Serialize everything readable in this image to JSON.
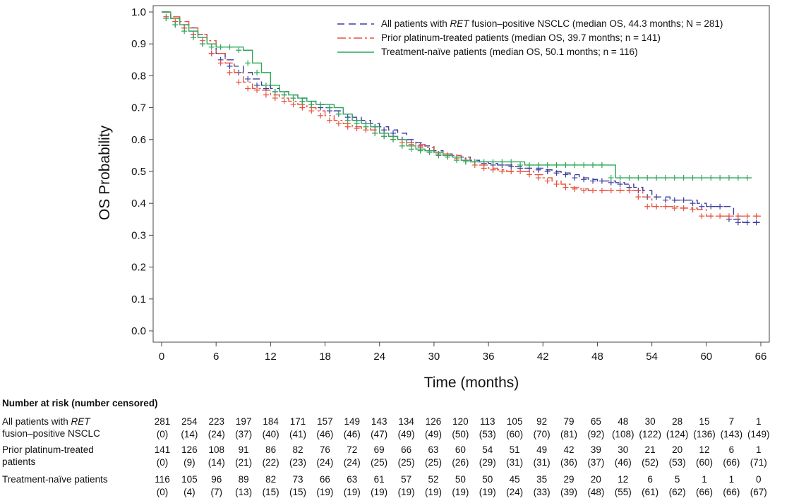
{
  "chart_data": {
    "type": "line",
    "subtype": "kaplan-meier",
    "xlabel": "Time (months)",
    "ylabel": "OS Probability",
    "xlim": [
      -1,
      68
    ],
    "ylim": [
      0,
      1.0
    ],
    "xticks": [
      "0",
      "6",
      "12",
      "18",
      "24",
      "30",
      "36",
      "42",
      "48",
      "54",
      "60",
      "66"
    ],
    "yticks": [
      "0.0",
      "0.1",
      "0.2",
      "0.3",
      "0.4",
      "0.5",
      "0.6",
      "0.7",
      "0.8",
      "0.9",
      "1.0"
    ],
    "legend_position": "top-right",
    "series": [
      {
        "name_pre": "All patients with ",
        "name_italic": "RET",
        "name_post": " fusion–positive NSCLC (median OS, 44.3 months; N = 281)",
        "color": "#3b3b9e",
        "dash": "10,6",
        "x": [
          0,
          1,
          2,
          3,
          4,
          5,
          6,
          7,
          8,
          9,
          10,
          11,
          12,
          13,
          14,
          15,
          16,
          17,
          18,
          19,
          20,
          21,
          22,
          23,
          24,
          25,
          26,
          27,
          28,
          29,
          30,
          31,
          32,
          33,
          34,
          35,
          36,
          37,
          38,
          39,
          40,
          41,
          42,
          43,
          44,
          45,
          46,
          47,
          48,
          49,
          50,
          51,
          52,
          53,
          54,
          55,
          56,
          57,
          58,
          59,
          60,
          61,
          62,
          63,
          64,
          65,
          66
        ],
        "y": [
          1.0,
          0.98,
          0.96,
          0.95,
          0.93,
          0.9,
          0.87,
          0.85,
          0.83,
          0.81,
          0.79,
          0.77,
          0.76,
          0.75,
          0.74,
          0.73,
          0.72,
          0.71,
          0.7,
          0.69,
          0.68,
          0.67,
          0.66,
          0.65,
          0.64,
          0.63,
          0.62,
          0.6,
          0.59,
          0.58,
          0.565,
          0.555,
          0.55,
          0.545,
          0.535,
          0.53,
          0.525,
          0.52,
          0.52,
          0.515,
          0.51,
          0.51,
          0.505,
          0.5,
          0.495,
          0.49,
          0.48,
          0.475,
          0.47,
          0.47,
          0.465,
          0.46,
          0.45,
          0.44,
          0.42,
          0.42,
          0.41,
          0.41,
          0.41,
          0.4,
          0.39,
          0.39,
          0.39,
          0.35,
          0.34,
          0.34,
          0.34
        ]
      },
      {
        "name_pre": "Prior platinum-treated patients (median OS, 39.7 months; n = 141)",
        "name_italic": "",
        "name_post": "",
        "color": "#e8503a",
        "dash": "12,4,3,4",
        "x": [
          0,
          1,
          2,
          3,
          4,
          5,
          6,
          7,
          8,
          9,
          10,
          11,
          12,
          13,
          14,
          15,
          16,
          17,
          18,
          19,
          20,
          21,
          22,
          23,
          24,
          25,
          26,
          27,
          28,
          29,
          30,
          31,
          32,
          33,
          34,
          35,
          36,
          37,
          38,
          39,
          40,
          41,
          42,
          43,
          44,
          45,
          46,
          47,
          48,
          49,
          50,
          51,
          52,
          53,
          54,
          55,
          56,
          57,
          58,
          59,
          60,
          61,
          62,
          63,
          64,
          65,
          66
        ],
        "y": [
          1.0,
          0.985,
          0.97,
          0.95,
          0.93,
          0.91,
          0.87,
          0.84,
          0.81,
          0.78,
          0.76,
          0.755,
          0.74,
          0.73,
          0.72,
          0.71,
          0.7,
          0.69,
          0.675,
          0.66,
          0.65,
          0.64,
          0.635,
          0.63,
          0.62,
          0.61,
          0.6,
          0.59,
          0.585,
          0.575,
          0.56,
          0.555,
          0.55,
          0.54,
          0.53,
          0.52,
          0.51,
          0.505,
          0.5,
          0.5,
          0.5,
          0.49,
          0.48,
          0.47,
          0.46,
          0.45,
          0.445,
          0.44,
          0.44,
          0.44,
          0.44,
          0.44,
          0.44,
          0.42,
          0.39,
          0.39,
          0.39,
          0.385,
          0.385,
          0.38,
          0.36,
          0.36,
          0.36,
          0.36,
          0.36,
          0.36,
          0.36
        ]
      },
      {
        "name_pre": "Treatment-naïve patients (median OS, 50.1 months; n = 116)",
        "name_italic": "",
        "name_post": "",
        "color": "#2ea65a",
        "dash": "",
        "x": [
          0,
          1,
          2,
          3,
          4,
          5,
          6,
          7,
          8,
          9,
          10,
          11,
          12,
          13,
          14,
          15,
          16,
          17,
          18,
          19,
          20,
          21,
          22,
          23,
          24,
          25,
          26,
          27,
          28,
          29,
          30,
          31,
          32,
          33,
          34,
          35,
          36,
          37,
          38,
          39,
          40,
          41,
          42,
          43,
          44,
          45,
          46,
          47,
          48,
          49,
          50,
          51,
          52,
          53,
          54,
          55,
          56,
          57,
          58,
          59,
          60,
          61,
          62,
          63,
          64,
          65
        ],
        "y": [
          1.0,
          0.98,
          0.96,
          0.94,
          0.92,
          0.9,
          0.89,
          0.89,
          0.89,
          0.88,
          0.84,
          0.81,
          0.77,
          0.75,
          0.74,
          0.73,
          0.72,
          0.71,
          0.71,
          0.7,
          0.68,
          0.66,
          0.65,
          0.64,
          0.62,
          0.61,
          0.6,
          0.58,
          0.57,
          0.565,
          0.56,
          0.55,
          0.545,
          0.535,
          0.53,
          0.53,
          0.53,
          0.53,
          0.53,
          0.53,
          0.52,
          0.52,
          0.52,
          0.52,
          0.52,
          0.52,
          0.52,
          0.52,
          0.52,
          0.52,
          0.48,
          0.48,
          0.48,
          0.48,
          0.48,
          0.48,
          0.48,
          0.48,
          0.48,
          0.48,
          0.48,
          0.48,
          0.48,
          0.48,
          0.48,
          0.48
        ]
      }
    ]
  },
  "risk_table": {
    "title": "Number at risk (number censored)",
    "times": [
      0,
      3,
      6,
      9,
      12,
      15,
      18,
      21,
      24,
      27,
      30,
      33,
      36,
      39,
      42,
      45,
      48,
      51,
      54,
      57,
      60,
      63,
      66
    ],
    "rows": [
      {
        "label_pre": "All patients with ",
        "label_italic": "RET",
        "label_line2": "fusion–positive NSCLC",
        "at_risk": [
          "281",
          "254",
          "223",
          "197",
          "184",
          "171",
          "157",
          "149",
          "143",
          "134",
          "126",
          "120",
          "113",
          "105",
          "92",
          "79",
          "65",
          "48",
          "30",
          "28",
          "15",
          "7",
          "1"
        ],
        "censored": [
          "(0)",
          "(14)",
          "(24)",
          "(37)",
          "(40)",
          "(41)",
          "(46)",
          "(46)",
          "(47)",
          "(49)",
          "(49)",
          "(50)",
          "(53)",
          "(60)",
          "(70)",
          "(81)",
          "(92)",
          "(108)",
          "(122)",
          "(124)",
          "(136)",
          "(143)",
          "(149)"
        ]
      },
      {
        "label_pre": "Prior platinum-treated",
        "label_italic": "",
        "label_line2": "patients",
        "at_risk": [
          "141",
          "126",
          "108",
          "91",
          "86",
          "82",
          "76",
          "72",
          "69",
          "66",
          "63",
          "60",
          "54",
          "51",
          "49",
          "42",
          "39",
          "30",
          "21",
          "20",
          "12",
          "6",
          "1"
        ],
        "censored": [
          "(0)",
          "(9)",
          "(14)",
          "(21)",
          "(22)",
          "(23)",
          "(24)",
          "(24)",
          "(25)",
          "(25)",
          "(25)",
          "(26)",
          "(29)",
          "(31)",
          "(31)",
          "(36)",
          "(37)",
          "(46)",
          "(52)",
          "(53)",
          "(60)",
          "(66)",
          "(71)"
        ]
      },
      {
        "label_pre": "Treatment-naïve patients",
        "label_italic": "",
        "label_line2": "",
        "at_risk": [
          "116",
          "105",
          "96",
          "89",
          "82",
          "73",
          "66",
          "63",
          "61",
          "57",
          "52",
          "50",
          "50",
          "45",
          "35",
          "29",
          "20",
          "12",
          "6",
          "5",
          "1",
          "1",
          "0"
        ],
        "censored": [
          "(0)",
          "(4)",
          "(7)",
          "(13)",
          "(15)",
          "(15)",
          "(19)",
          "(19)",
          "(19)",
          "(19)",
          "(19)",
          "(19)",
          "(19)",
          "(24)",
          "(33)",
          "(39)",
          "(48)",
          "(55)",
          "(61)",
          "(62)",
          "(66)",
          "(66)",
          "(67)"
        ]
      }
    ]
  }
}
